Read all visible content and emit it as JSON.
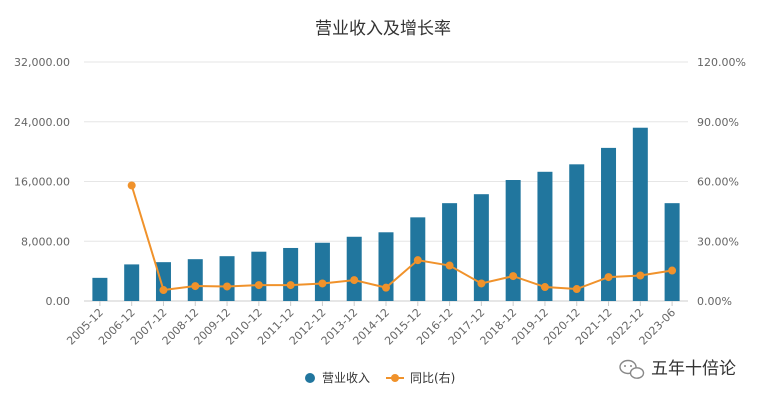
{
  "chart_data": {
    "type": "bar",
    "title": "营业收入及增长率",
    "categories": [
      "2005-12",
      "2006-12",
      "2007-12",
      "2008-12",
      "2009-12",
      "2010-12",
      "2011-12",
      "2012-12",
      "2013-12",
      "2014-12",
      "2015-12",
      "2016-12",
      "2017-12",
      "2018-12",
      "2019-12",
      "2020-12",
      "2021-12",
      "2022-12",
      "2023-06"
    ],
    "series": [
      {
        "name": "营业收入",
        "type": "bar",
        "axis": "left",
        "color": "#21769e",
        "values": [
          3100,
          4900,
          5200,
          5600,
          6000,
          6600,
          7100,
          7800,
          8600,
          9200,
          11200,
          13100,
          14300,
          16200,
          17300,
          18300,
          20500,
          23200,
          13100
        ]
      },
      {
        "name": "同比(右)",
        "type": "line",
        "axis": "right",
        "color": "#f0922b",
        "values": [
          null,
          58.0,
          5.5,
          7.5,
          7.3,
          8.0,
          8.0,
          8.8,
          10.5,
          6.7,
          20.5,
          17.8,
          8.8,
          12.5,
          7.0,
          6.0,
          12.0,
          12.8,
          15.3
        ]
      }
    ],
    "y_left": {
      "ylim": [
        0,
        32000
      ],
      "ticks": [
        "0.00",
        "8,000.00",
        "16,000.00",
        "24,000.00",
        "32,000.00"
      ],
      "tick_values": [
        0,
        8000,
        16000,
        24000,
        32000
      ]
    },
    "y_right": {
      "ylim": [
        0,
        120
      ],
      "ticks": [
        "0.00%",
        "30.00%",
        "60.00%",
        "90.00%",
        "120.00%"
      ],
      "tick_values": [
        0,
        30,
        60,
        90,
        120
      ]
    },
    "grid": true,
    "legend_position": "bottom"
  },
  "watermark": {
    "text": "五年十倍论",
    "icon": "wechat-icon"
  }
}
